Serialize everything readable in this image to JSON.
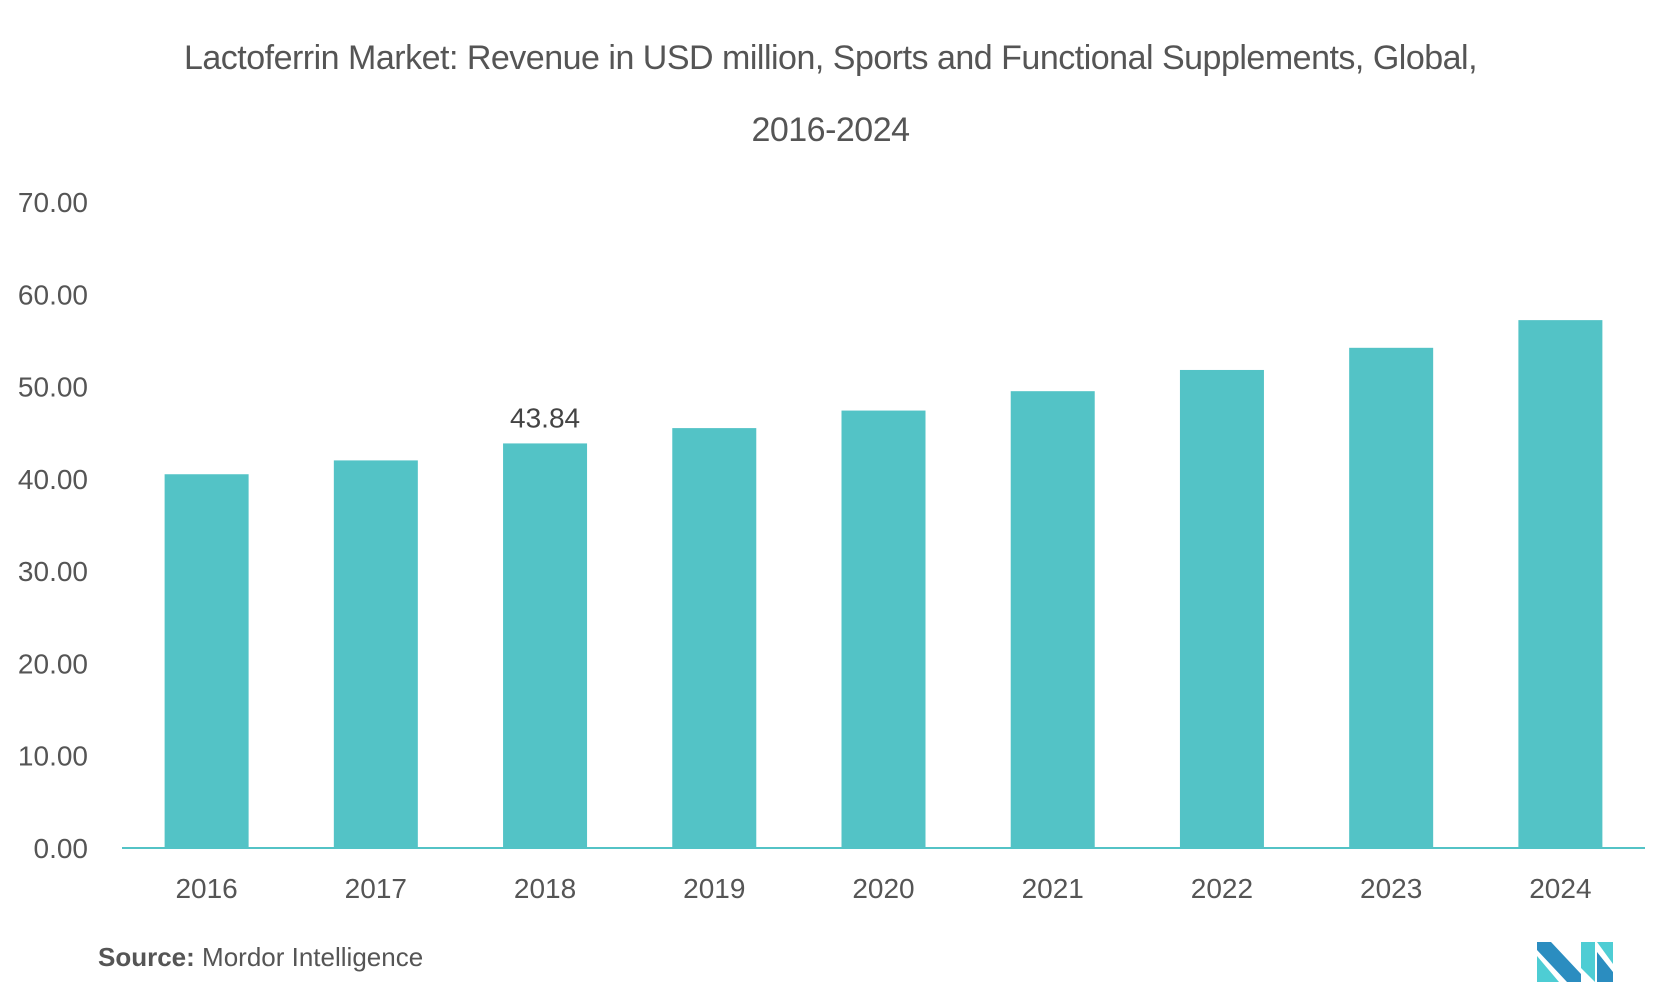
{
  "chart_data": {
    "type": "bar",
    "title": "Lactoferrin Market: Revenue in USD million, Sports and Functional Supplements, Global, 2016-2024",
    "title_lines": [
      "Lactoferrin Market: Revenue in USD million, Sports and Functional Supplements, Global,",
      "2016-2024"
    ],
    "xlabel": "",
    "ylabel": "",
    "categories": [
      "2016",
      "2017",
      "2018",
      "2019",
      "2020",
      "2021",
      "2022",
      "2023",
      "2024"
    ],
    "values": [
      40.5,
      42.0,
      43.84,
      45.5,
      47.4,
      49.5,
      51.8,
      54.2,
      57.2
    ],
    "data_labels": [
      {
        "category": "2018",
        "text": "43.84"
      }
    ],
    "ylim": [
      0,
      70
    ],
    "yticks": [
      "0.00",
      "10.00",
      "20.00",
      "30.00",
      "40.00",
      "50.00",
      "60.00",
      "70.00"
    ],
    "grid": false,
    "legend": "none",
    "bar_color": "#53C3C6",
    "axis_color": "#53C3C6"
  },
  "footer": {
    "source_label": "Source:",
    "source_text": "Mordor Intelligence",
    "logo": "mordor-intelligence-logo"
  }
}
